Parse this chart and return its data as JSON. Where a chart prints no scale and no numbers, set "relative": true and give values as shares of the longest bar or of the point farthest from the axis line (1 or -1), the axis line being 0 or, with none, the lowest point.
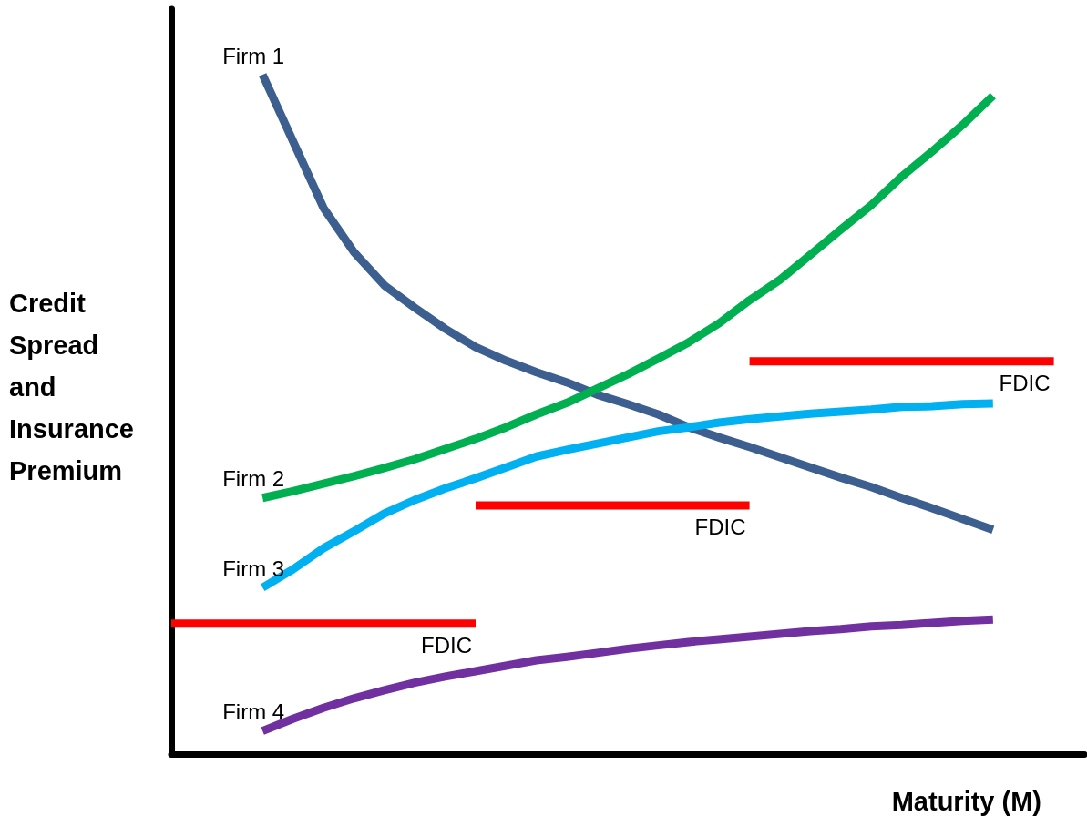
{
  "chart_data": {
    "type": "line",
    "relative": true,
    "xlabel": "Maturity (M)",
    "ylabel": "Credit Spread and Insurance Premium",
    "categories": [
      null,
      null,
      null,
      null,
      null,
      null,
      null,
      null,
      null,
      null,
      null,
      null,
      null,
      null,
      null,
      null,
      null,
      null,
      null,
      null,
      null,
      null,
      null,
      null,
      null,
      null,
      null,
      null,
      null,
      null,
      null
    ],
    "marker": "none",
    "line_style": "solid",
    "series": [
      {
        "name": "Firm 1",
        "color": "#3d5f8f",
        "values": [
          null,
          null,
          null,
          1.0,
          0.902,
          0.804,
          0.739,
          0.69,
          0.657,
          0.626,
          0.599,
          0.579,
          0.562,
          0.547,
          0.529,
          0.515,
          0.5,
          0.481,
          0.466,
          0.452,
          0.437,
          0.422,
          0.407,
          0.393,
          0.377,
          0.362,
          0.346,
          0.33,
          null,
          null,
          null
        ]
      },
      {
        "name": "Firm 2",
        "color": "#00b050",
        "values": [
          null,
          null,
          null,
          0.377,
          0.387,
          0.398,
          0.409,
          0.421,
          0.434,
          0.449,
          0.464,
          0.481,
          0.5,
          0.517,
          0.538,
          0.559,
          0.582,
          0.606,
          0.634,
          0.668,
          0.698,
          0.735,
          0.772,
          0.808,
          0.85,
          0.887,
          0.926,
          0.969,
          null,
          null,
          null
        ]
      },
      {
        "name": "Firm 3",
        "color": "#00b0f0",
        "values": [
          null,
          null,
          null,
          0.245,
          0.272,
          0.303,
          0.328,
          0.354,
          0.374,
          0.391,
          0.406,
          0.422,
          0.438,
          0.448,
          0.457,
          0.466,
          0.475,
          0.481,
          0.488,
          0.493,
          0.497,
          0.501,
          0.504,
          0.507,
          0.511,
          0.512,
          0.515,
          0.516,
          null,
          null,
          null
        ]
      },
      {
        "name": "Firm 4",
        "color": "#7030a0",
        "values": [
          null,
          null,
          null,
          0.034,
          0.052,
          0.068,
          0.082,
          0.094,
          0.105,
          0.114,
          0.122,
          0.13,
          0.138,
          0.143,
          0.149,
          0.155,
          0.16,
          0.165,
          0.169,
          0.173,
          0.177,
          0.181,
          0.184,
          0.188,
          0.19,
          0.193,
          0.196,
          0.198,
          null,
          null,
          null
        ]
      },
      {
        "color": "#ff0000",
        "values": [
          0.192,
          0.192,
          0.192,
          0.192,
          0.192,
          0.192,
          0.192,
          0.192,
          0.192,
          0.192,
          0.192,
          null,
          null,
          null,
          null,
          null,
          null,
          null,
          null,
          null,
          null,
          null,
          null,
          null,
          null,
          null,
          null,
          null,
          null,
          null,
          null
        ]
      },
      {
        "color": "#ff0000",
        "values": [
          null,
          null,
          null,
          null,
          null,
          null,
          null,
          null,
          null,
          null,
          0.366,
          0.366,
          0.366,
          0.366,
          0.366,
          0.366,
          0.366,
          0.366,
          0.366,
          0.366,
          null,
          null,
          null,
          null,
          null,
          null,
          null,
          null,
          null,
          null,
          null
        ]
      },
      {
        "color": "#ff0000",
        "values": [
          null,
          null,
          null,
          null,
          null,
          null,
          null,
          null,
          null,
          null,
          null,
          null,
          null,
          null,
          null,
          null,
          null,
          null,
          null,
          0.578,
          0.578,
          0.578,
          0.578,
          0.578,
          0.578,
          0.578,
          0.578,
          0.578,
          0.578,
          0.578,
          null
        ]
      }
    ],
    "annotations": [
      "FDIC",
      "FDIC",
      "FDIC"
    ]
  }
}
